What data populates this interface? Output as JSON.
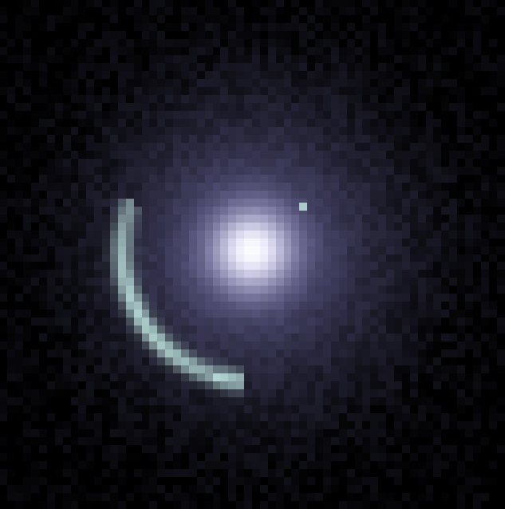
{
  "image": {
    "subject": "gravitational-lens-galaxy",
    "colors": {
      "background": "#000000",
      "halo": "#4b4966",
      "core": "#ffffff",
      "arc": "#bde3de",
      "noise": "#141220"
    }
  }
}
